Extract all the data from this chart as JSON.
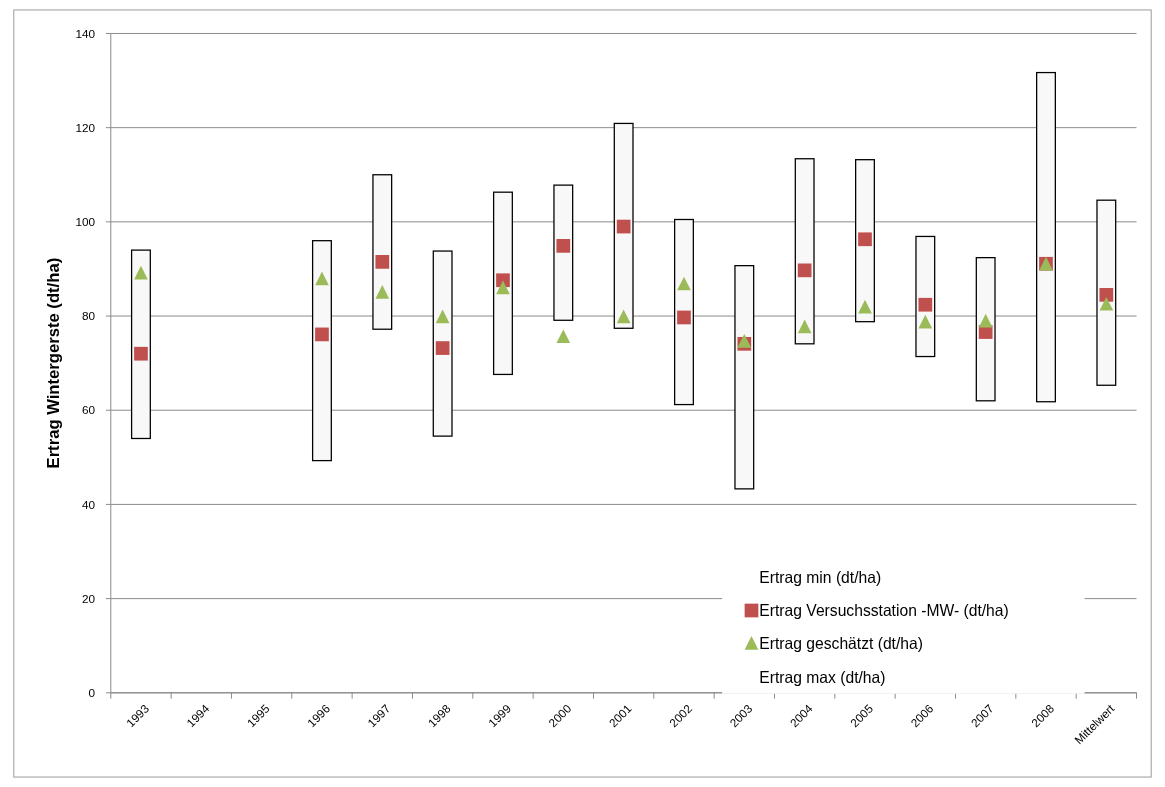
{
  "chart_data": {
    "type": "bar",
    "ylabel": "Ertrag Wintergerste (dt/ha)",
    "categories": [
      "1993",
      "1994",
      "1995",
      "1996",
      "1997",
      "1998",
      "1999",
      "2000",
      "2001",
      "2002",
      "2003",
      "2004",
      "2005",
      "2006",
      "2007",
      "2008",
      "Mittelwert"
    ],
    "series": [
      {
        "color": "#f8f8f8",
        "base": [
          54,
          null,
          null,
          49.3,
          77.2,
          54.5,
          67.6,
          79.1,
          77.4,
          61.2,
          43.3,
          74.1,
          78.8,
          71.4,
          62,
          61.8,
          65.3
        ],
        "values": [
          40,
          null,
          null,
          46.7,
          32.8,
          39.3,
          38.7,
          28.7,
          43.5,
          39.3,
          47.4,
          39.3,
          34.4,
          25.5,
          30.4,
          69.9,
          39.3
        ]
      },
      {
        "name": "Ertrag Versuchsstation -MW- (dt/ha)",
        "type": "scatter",
        "marker": "square",
        "color": "#c0504d",
        "values": [
          72,
          null,
          null,
          76.1,
          91.5,
          73.2,
          87.6,
          94.9,
          99,
          79.7,
          74.1,
          89.7,
          96.3,
          82.4,
          76.6,
          91.1,
          84.5
        ]
      },
      {
        "name": "Ertrag geschätzt (dt/ha)",
        "type": "scatter",
        "marker": "triangle",
        "color": "#9bbb59",
        "values": [
          89,
          null,
          null,
          87.8,
          84.9,
          79.7,
          85.9,
          75.5,
          79.7,
          86.7,
          74.5,
          77.6,
          81.8,
          78.6,
          78.8,
          90.9,
          82.4
        ]
      }
    ],
    "annotations": [
      "Ertrag min (dt/ha)",
      "Ertrag max (dt/ha)"
    ],
    "ylim": [
      0,
      140
    ],
    "yticks": [
      0,
      20,
      40,
      60,
      80,
      100,
      120,
      140
    ],
    "grid": "y",
    "legend": "bottom right"
  }
}
